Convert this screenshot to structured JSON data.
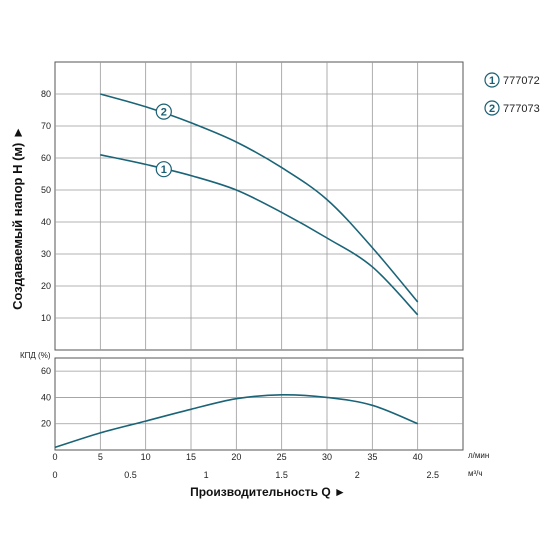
{
  "colors": {
    "curve": "#1a6478",
    "grid": "#9a9a9a",
    "frame": "#555555",
    "marker": "#1a5f73"
  },
  "chart_data": {
    "type": "line",
    "head_chart": {
      "ylabel": "Создаваемый напор H (м) ►",
      "ylim": [
        0,
        90
      ],
      "xlim": [
        0,
        45
      ],
      "y_ticks": [
        "10",
        "20",
        "30",
        "40",
        "50",
        "60",
        "70",
        "80"
      ],
      "y_tick_values": [
        10,
        20,
        30,
        40,
        50,
        60,
        70,
        80
      ],
      "grid": true,
      "series": [
        {
          "marker": "1",
          "x": [
            5,
            10,
            15,
            20,
            25,
            30,
            35,
            40
          ],
          "y": [
            61,
            58,
            54.5,
            50,
            43,
            35,
            26,
            11
          ],
          "marker_at": [
            12,
            56.5
          ]
        },
        {
          "marker": "2",
          "x": [
            5,
            10,
            15,
            20,
            25,
            30,
            35,
            40
          ],
          "y": [
            80,
            76,
            71,
            65,
            57,
            47,
            32,
            15
          ],
          "marker_at": [
            12,
            74.5
          ]
        }
      ]
    },
    "efficiency_chart": {
      "ylabel": "КПД (%)",
      "ylim": [
        0,
        70
      ],
      "xlim": [
        0,
        45
      ],
      "y_ticks": [
        "20",
        "40",
        "60"
      ],
      "y_tick_values": [
        20,
        40,
        60
      ],
      "grid": true,
      "series": [
        {
          "x": [
            0,
            5,
            10,
            15,
            20,
            25,
            30,
            35,
            40
          ],
          "y": [
            2,
            13,
            22,
            31,
            39,
            42,
            40,
            34,
            20
          ]
        }
      ]
    },
    "x_axis_primary": {
      "unit": "л/мин",
      "ticks": [
        "0",
        "5",
        "10",
        "15",
        "20",
        "25",
        "30",
        "35",
        "40"
      ],
      "tick_values": [
        0,
        5,
        10,
        15,
        20,
        25,
        30,
        35,
        40
      ]
    },
    "x_axis_secondary": {
      "unit": "м³/ч",
      "ticks": [
        "0",
        "0.5",
        "1",
        "1.5",
        "2",
        "2.5"
      ],
      "tick_values": [
        0,
        0.5,
        1,
        1.5,
        2,
        2.5
      ]
    },
    "xlabel": "Производительность Q ►",
    "legend": {
      "placement": "right",
      "entries": [
        {
          "marker": "1",
          "label": "777072"
        },
        {
          "marker": "2",
          "label": "777073"
        }
      ]
    }
  }
}
